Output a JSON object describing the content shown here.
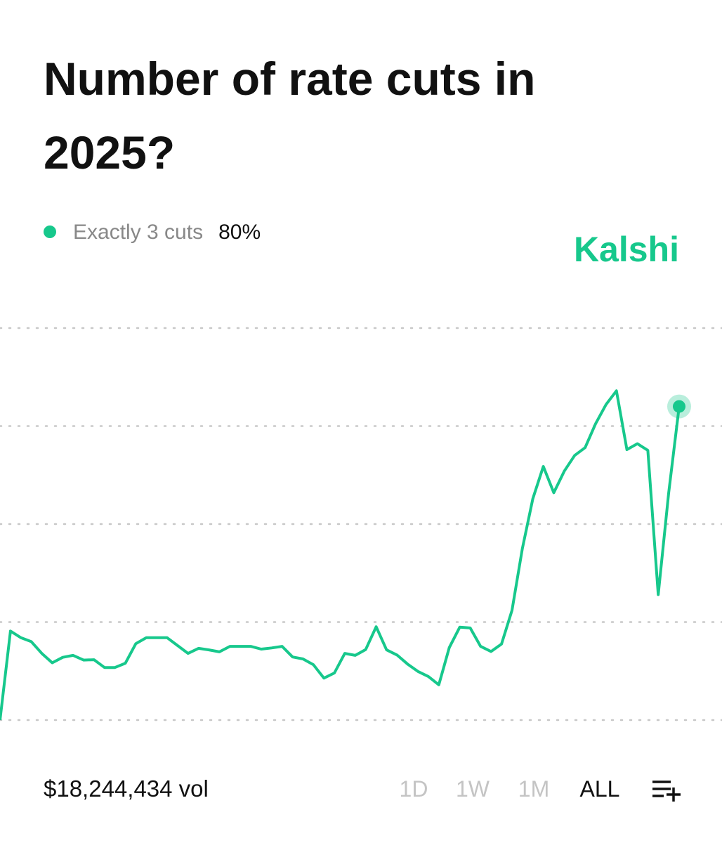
{
  "chart_data": {
    "type": "line",
    "title": "Number of rate cuts in 2025?",
    "brand": "Kalshi",
    "series": [
      {
        "name": "Exactly 3 cuts",
        "color": "#17c88c",
        "value_label": "80%",
        "values": [
          0,
          22.7,
          21,
          20,
          17,
          14.6,
          16,
          16.5,
          15.3,
          15.4,
          13.4,
          13.4,
          14.5,
          19.5,
          21,
          21,
          21,
          19,
          17,
          18.3,
          17.9,
          17.4,
          18.8,
          18.8,
          18.8,
          18.1,
          18.4,
          18.8,
          16.1,
          15.6,
          14.1,
          10.7,
          12,
          17,
          16.5,
          18,
          23.8,
          17.9,
          16.6,
          14.3,
          12.4,
          11.1,
          9,
          18.5,
          23.7,
          23.5,
          18.8,
          17.5,
          19.4,
          28,
          43.8,
          56.5,
          64.7,
          58,
          63.5,
          67.5,
          69.5,
          75.6,
          80.5,
          84,
          69,
          70.5,
          68.8,
          32,
          58,
          80
        ]
      }
    ],
    "ylim": [
      0,
      100
    ],
    "yticks": [
      0,
      25,
      50,
      75,
      100
    ],
    "grid": true,
    "volume_label": "$18,244,434 vol",
    "ranges": [
      "1D",
      "1W",
      "1M",
      "ALL"
    ],
    "selected_range": 3
  }
}
